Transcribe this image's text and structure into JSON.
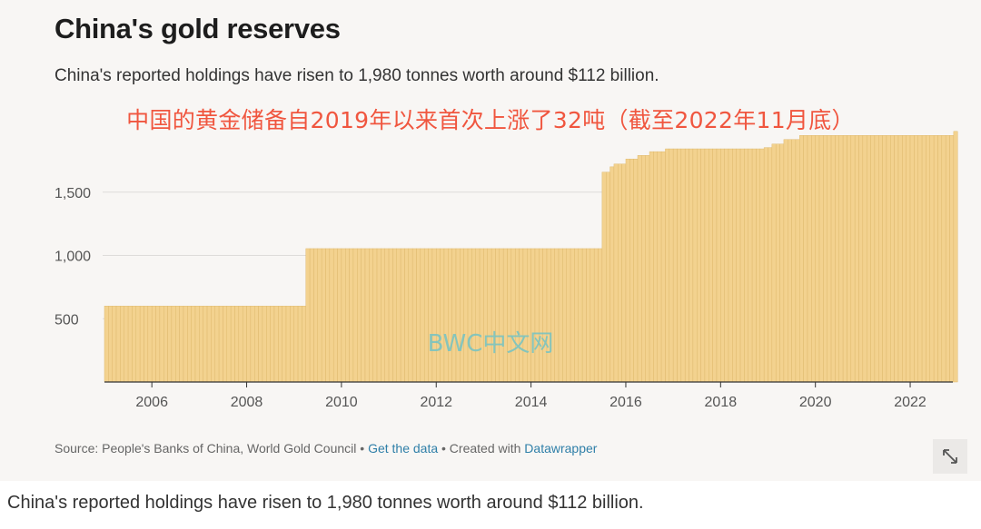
{
  "title": "China's gold reserves",
  "subtitle": "China's reported holdings have risen to 1,980 tonnes worth around $112 billion.",
  "annotation": "中国的黄金储备自2019年以来首次上涨了32吨（截至2022年11月底）",
  "watermark": "BWC中文网",
  "source": {
    "prefix": "Source: People's Banks of China, World Gold Council",
    "sep1": "•",
    "get_data": "Get the data",
    "sep2": "• Created with",
    "datawrapper": "Datawrapper"
  },
  "caption": "China's reported holdings have risen to 1,980 tonnes worth around $112 billion.",
  "expand_icon": "expand-diagonal-icon",
  "colors": {
    "bar_fill": "#f3d28f",
    "bar_line": "#ddb76a",
    "annotation": "#f0563f",
    "link": "#2f7fa8",
    "background": "#f8f6f4"
  },
  "chart_data": {
    "type": "bar",
    "title": "China's gold reserves",
    "ylabel": "",
    "xlabel": "",
    "x_range": [
      2005.0,
      2022.9
    ],
    "ylim": [
      0,
      2000
    ],
    "y_ticks": [
      500,
      1000,
      1500
    ],
    "y_tick_labels": [
      "500",
      "1,000",
      "1,500"
    ],
    "x_ticks": [
      2006,
      2008,
      2010,
      2012,
      2014,
      2016,
      2018,
      2020,
      2022
    ],
    "x_tick_labels": [
      "2006",
      "2008",
      "2010",
      "2012",
      "2014",
      "2016",
      "2018",
      "2020",
      "2022"
    ],
    "grid": true,
    "frequency": "monthly",
    "steps": [
      {
        "from": 2005.0,
        "value": 600
      },
      {
        "from": 2009.25,
        "value": 1054
      },
      {
        "from": 2015.5,
        "value": 1658
      },
      {
        "from": 2015.6,
        "value": 1700
      },
      {
        "from": 2015.75,
        "value": 1722
      },
      {
        "from": 2016.0,
        "value": 1762
      },
      {
        "from": 2016.2,
        "value": 1790
      },
      {
        "from": 2016.45,
        "value": 1820
      },
      {
        "from": 2016.8,
        "value": 1842
      },
      {
        "from": 2018.9,
        "value": 1852
      },
      {
        "from": 2019.05,
        "value": 1880
      },
      {
        "from": 2019.3,
        "value": 1916
      },
      {
        "from": 2019.6,
        "value": 1948
      },
      {
        "from": 2022.9,
        "value": 1980
      }
    ],
    "end": 2022.92
  }
}
